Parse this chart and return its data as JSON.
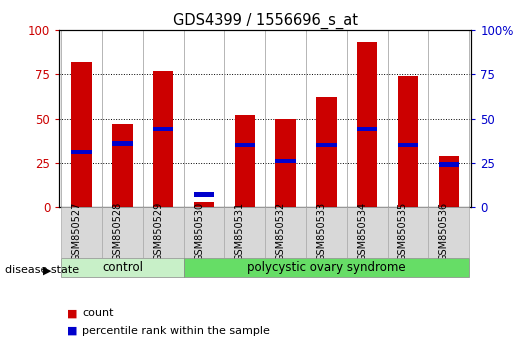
{
  "title": "GDS4399 / 1556696_s_at",
  "samples": [
    "GSM850527",
    "GSM850528",
    "GSM850529",
    "GSM850530",
    "GSM850531",
    "GSM850532",
    "GSM850533",
    "GSM850534",
    "GSM850535",
    "GSM850536"
  ],
  "count_values": [
    82,
    47,
    77,
    3,
    52,
    50,
    62,
    93,
    74,
    29
  ],
  "percentile_values": [
    31,
    36,
    44,
    7,
    35,
    26,
    35,
    44,
    35,
    24
  ],
  "bar_color": "#cc0000",
  "percentile_color": "#0000cc",
  "groups": [
    {
      "label": "control",
      "start": 0,
      "end": 3,
      "color": "#c8f0c8"
    },
    {
      "label": "polycystic ovary syndrome",
      "start": 3,
      "end": 10,
      "color": "#66dd66"
    }
  ],
  "disease_state_label": "disease state",
  "ylim": [
    0,
    100
  ],
  "yticks": [
    0,
    25,
    50,
    75,
    100
  ],
  "legend_count": "count",
  "legend_percentile": "percentile rank within the sample",
  "bar_width": 0.5,
  "title_fontsize": 10.5
}
